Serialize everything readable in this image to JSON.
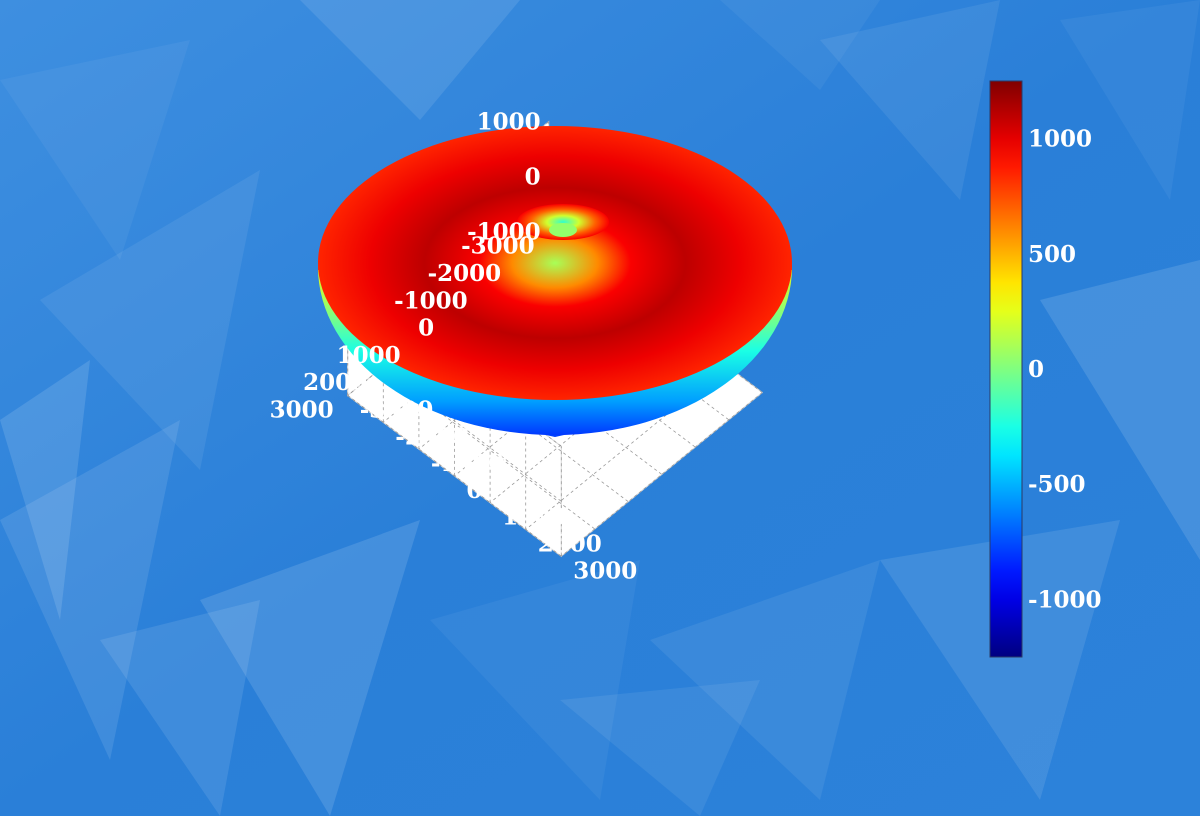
{
  "colors": {
    "background": "#2a7fd8",
    "axis_box": "#ffffff",
    "grid": "#9a9a9a",
    "tick_text": "#ffffff",
    "colormap": "jet"
  },
  "chart_data": {
    "type": "surface3d",
    "shape": "torus",
    "colormap": "jet",
    "color_by": "z",
    "major_radius": 1500,
    "minor_radius": 800,
    "xlim": [
      -3000,
      3000
    ],
    "ylim": [
      -3000,
      3000
    ],
    "zlim": [
      -1000,
      1000
    ],
    "x_ticks": [
      "-3000",
      "-2000",
      "-1000",
      "0",
      "1000",
      "2000",
      "3000"
    ],
    "y_ticks": [
      "-3000",
      "-2000",
      "-1000",
      "0",
      "1000",
      "2000",
      "3000"
    ],
    "z_ticks": [
      "1000",
      "0",
      "-1000"
    ],
    "grid": true,
    "colorbar": {
      "range": [
        -1250,
        1250
      ],
      "ticks": [
        "1000",
        "500",
        "0",
        "-500",
        "-1000"
      ],
      "placement": "right"
    }
  }
}
